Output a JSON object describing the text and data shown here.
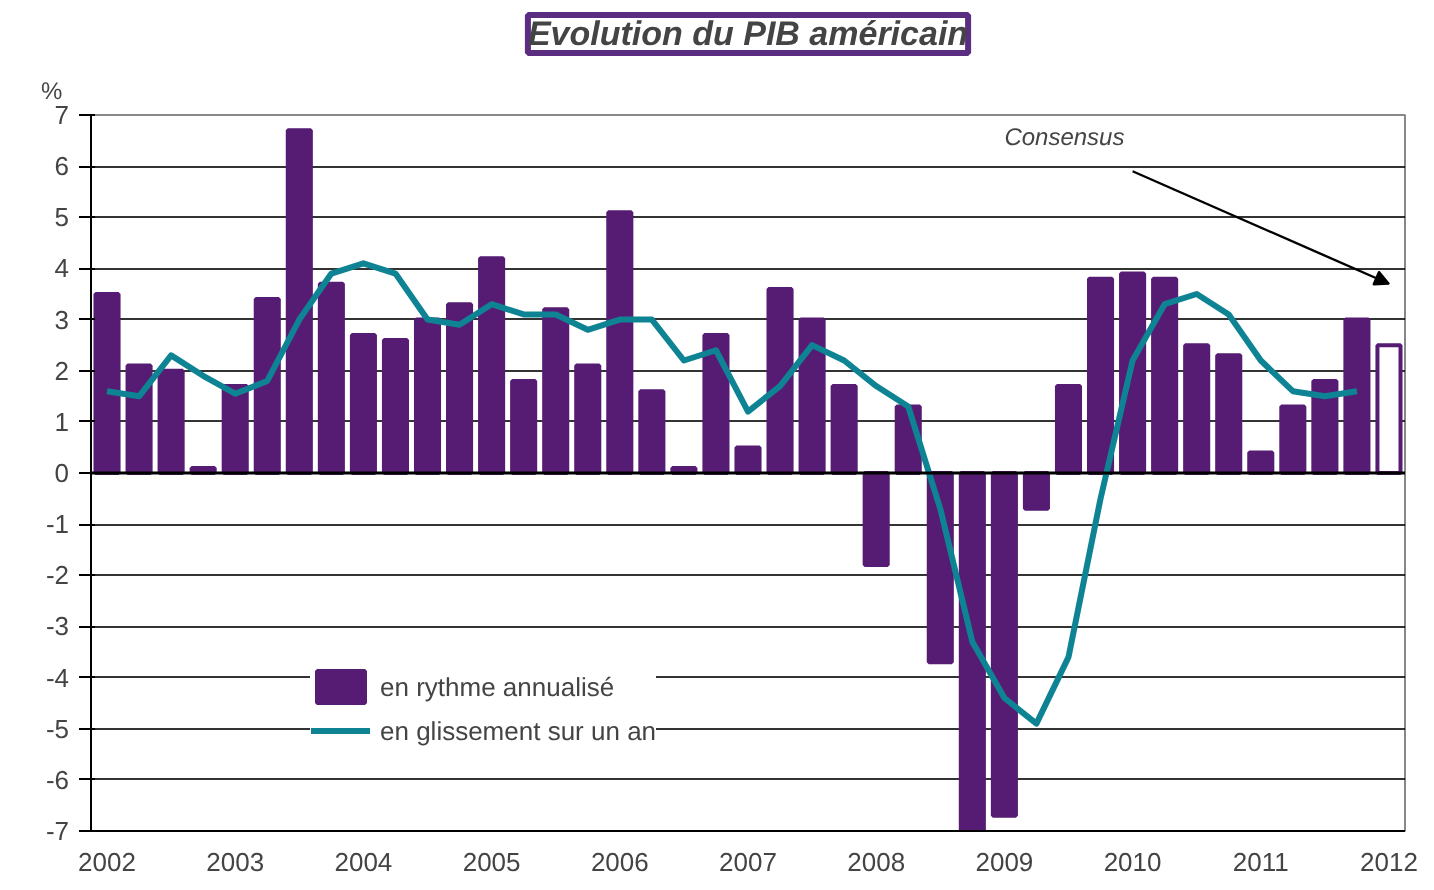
{
  "chart_data": {
    "type": "bar",
    "title": "Evolution du PIB américain",
    "ylabel": "%",
    "categories": [
      "2002",
      null,
      null,
      null,
      "2003",
      null,
      null,
      null,
      "2004",
      null,
      null,
      null,
      "2005",
      null,
      null,
      null,
      "2006",
      null,
      null,
      null,
      "2007",
      null,
      null,
      null,
      "2008",
      null,
      null,
      null,
      "2009",
      null,
      null,
      null,
      "2010",
      null,
      null,
      null,
      "2011",
      null,
      null,
      null,
      "2012"
    ],
    "series": [
      {
        "name": "en rythme annualisé",
        "color": "#561c73",
        "colors": [
          "#561c73",
          "#561c73",
          "#561c73",
          "#561c73",
          "#561c73",
          "#561c73",
          "#561c73",
          "#561c73",
          "#561c73",
          "#561c73",
          "#561c73",
          "#561c73",
          "#561c73",
          "#561c73",
          "#561c73",
          "#561c73",
          "#561c73",
          "#561c73",
          "#561c73",
          "#561c73",
          "#561c73",
          "#561c73",
          "#561c73",
          "#561c73",
          "#561c73",
          "#561c73",
          "#561c73",
          "#561c73",
          "#561c73",
          "#561c73",
          "#561c73",
          "#561c73",
          "#561c73",
          "#561c73",
          "#561c73",
          "#561c73",
          "#561c73",
          "#561c73",
          "#561c73",
          "#561c73",
          "#ffffff"
        ],
        "values": [
          3.5,
          2.1,
          2.0,
          0.1,
          1.7,
          3.4,
          6.7,
          3.7,
          2.7,
          2.6,
          3.0,
          3.3,
          4.2,
          1.8,
          3.2,
          2.1,
          5.1,
          1.6,
          0.1,
          2.7,
          0.5,
          3.6,
          3.0,
          1.7,
          -1.8,
          1.3,
          -3.7,
          -7.0,
          -6.7,
          -0.7,
          1.7,
          3.8,
          3.9,
          3.8,
          2.5,
          2.3,
          0.4,
          1.3,
          1.8,
          3.0,
          2.5
        ]
      },
      {
        "name": "en glissement sur un an",
        "type": "line",
        "color": "#0e8394",
        "values": [
          1.6,
          1.5,
          2.3,
          1.9,
          1.55,
          1.8,
          3.0,
          3.9,
          4.1,
          3.9,
          3.0,
          2.9,
          3.3,
          3.1,
          3.1,
          2.8,
          3.0,
          3.0,
          2.2,
          2.4,
          1.2,
          1.7,
          2.5,
          2.2,
          1.7,
          1.3,
          -0.7,
          -3.3,
          -4.4,
          -4.9,
          -3.6,
          -0.5,
          2.2,
          3.3,
          3.5,
          3.1,
          2.2,
          1.6,
          1.5,
          1.6,
          null
        ]
      }
    ],
    "ylim": [
      -7,
      7
    ],
    "yticks": [
      -7,
      -6,
      -5,
      -4,
      -3,
      -2,
      -1,
      0,
      1,
      2,
      3,
      4,
      5,
      6,
      7
    ],
    "grid": "y",
    "legend": "bottom left",
    "annotations": [
      "Consensus"
    ]
  }
}
